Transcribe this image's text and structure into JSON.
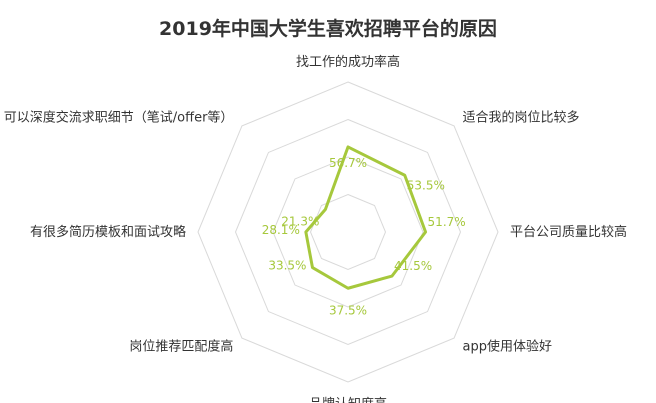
{
  "chart_data": {
    "type": "radar",
    "title": "2019年中国大学生喜欢招聘平台的原因",
    "categories": [
      "找工作的成功率高",
      "适合我的岗位比较多",
      "平台公司质量比较高",
      "app使用体验好",
      "品牌认知度高",
      "岗位推荐匹配度高",
      "有很多简历模板和面试攻略",
      "可以深度交流求职细节（笔试/offer等）"
    ],
    "values": [
      56.7,
      53.5,
      51.7,
      41.5,
      37.5,
      33.5,
      28.1,
      21.3
    ],
    "value_labels": [
      "56.7%",
      "53.5%",
      "51.7%",
      "41.5%",
      "37.5%",
      "33.5%",
      "28.1%",
      "21.3%"
    ],
    "rlim": [
      0,
      100
    ],
    "grid_rings": 4,
    "grid": true,
    "legend": "none",
    "colors": {
      "series": "#a6c83c",
      "grid": "#d9d9d9",
      "text": "#333333"
    }
  }
}
